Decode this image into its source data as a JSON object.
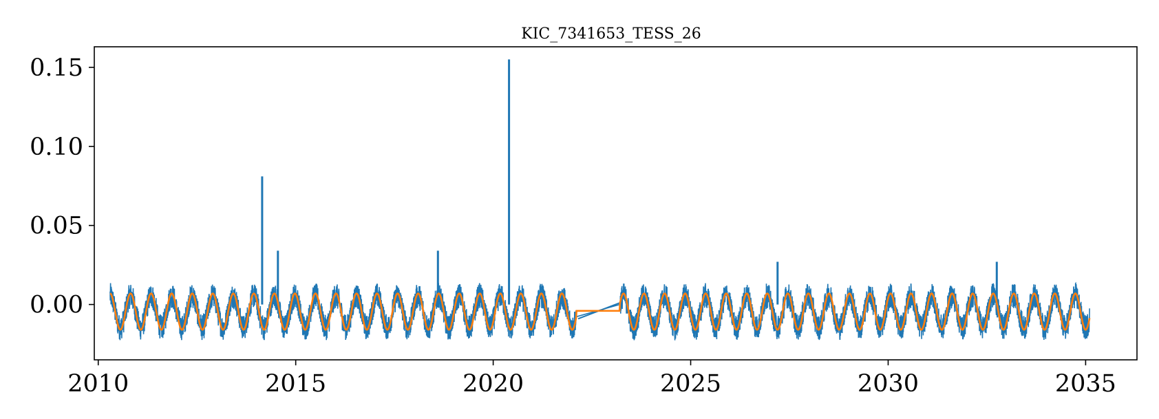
{
  "chart_data": {
    "type": "line",
    "title": "KIC_7341653_TESS_26",
    "xlabel": "",
    "ylabel": "",
    "xlim": [
      2009.9,
      2036.3
    ],
    "ylim": [
      -0.035,
      0.163
    ],
    "x_ticks": [
      2010,
      2015,
      2020,
      2025,
      2030,
      2035
    ],
    "x_tick_labels": [
      "2010",
      "2015",
      "2020",
      "2025",
      "2030",
      "2035"
    ],
    "y_ticks": [
      0.0,
      0.05,
      0.1,
      0.15
    ],
    "y_tick_labels": [
      "0.00",
      "0.05",
      "0.10",
      "0.15"
    ],
    "grid": false,
    "legend": "none",
    "series": [
      {
        "color": "#1f77b4",
        "description_points": [
          [
            2010.3,
            0.0
          ],
          [
            2010.8,
            -0.022
          ],
          [
            2011.3,
            0.013
          ],
          [
            2011.7,
            -0.022
          ],
          [
            2012.3,
            0.013
          ],
          [
            2012.8,
            -0.022
          ],
          [
            2013.3,
            0.012
          ],
          [
            2013.8,
            -0.022
          ],
          [
            2014.15,
            0.081
          ],
          [
            2014.3,
            0.017
          ],
          [
            2014.55,
            0.034
          ],
          [
            2014.8,
            -0.021
          ],
          [
            2015.3,
            0.014
          ],
          [
            2015.8,
            -0.021
          ],
          [
            2016.3,
            0.012
          ],
          [
            2016.8,
            -0.022
          ],
          [
            2017.3,
            0.012
          ],
          [
            2017.8,
            -0.023
          ],
          [
            2018.3,
            0.012
          ],
          [
            2018.6,
            0.034
          ],
          [
            2018.9,
            -0.025
          ],
          [
            2019.3,
            0.011
          ],
          [
            2019.8,
            -0.022
          ],
          [
            2020.2,
            0.01
          ],
          [
            2020.4,
            0.155
          ],
          [
            2020.8,
            -0.022
          ],
          [
            2021.4,
            0.018
          ],
          [
            2021.7,
            -0.022
          ],
          [
            2022.1,
            0.0
          ],
          [
            2022.2,
            -0.009
          ],
          [
            2023.2,
            0.001
          ],
          [
            2023.4,
            0.014
          ],
          [
            2023.8,
            -0.022
          ],
          [
            2024.3,
            0.014
          ],
          [
            2024.8,
            -0.024
          ],
          [
            2025.3,
            0.014
          ],
          [
            2025.8,
            -0.022
          ],
          [
            2026.3,
            0.013
          ],
          [
            2026.8,
            -0.022
          ],
          [
            2027.2,
            0.027
          ],
          [
            2027.3,
            0.011
          ],
          [
            2027.8,
            -0.022
          ],
          [
            2028.3,
            0.011
          ],
          [
            2028.8,
            -0.022
          ],
          [
            2029.3,
            0.014
          ],
          [
            2029.8,
            -0.022
          ],
          [
            2030.5,
            0.016
          ],
          [
            2030.8,
            -0.022
          ],
          [
            2031.3,
            0.014
          ],
          [
            2031.8,
            -0.022
          ],
          [
            2032.3,
            0.012
          ],
          [
            2032.75,
            0.027
          ],
          [
            2032.9,
            -0.026
          ],
          [
            2033.3,
            0.012
          ],
          [
            2033.8,
            -0.022
          ],
          [
            2034.3,
            0.012
          ],
          [
            2034.8,
            -0.022
          ],
          [
            2035.1,
            -0.003
          ]
        ],
        "spikes": [
          [
            2014.15,
            0.081
          ],
          [
            2014.55,
            0.034
          ],
          [
            2018.6,
            0.034
          ],
          [
            2020.4,
            0.155
          ],
          [
            2027.2,
            0.027
          ],
          [
            2032.75,
            0.027
          ]
        ],
        "gap": [
          2022.1,
          2023.2
        ],
        "period_years": 0.52,
        "baseline": -0.004,
        "amplitude_upper": 0.014,
        "amplitude_lower": -0.023,
        "x_range": [
          2010.3,
          2035.1
        ]
      },
      {
        "color": "#ff7f0e",
        "period_years": 0.52,
        "baseline": -0.004,
        "amplitude_upper": 0.007,
        "amplitude_lower": -0.016,
        "gap_level": -0.004,
        "gap": [
          2022.1,
          2023.2
        ],
        "x_range": [
          2010.3,
          2035.1
        ]
      }
    ]
  }
}
